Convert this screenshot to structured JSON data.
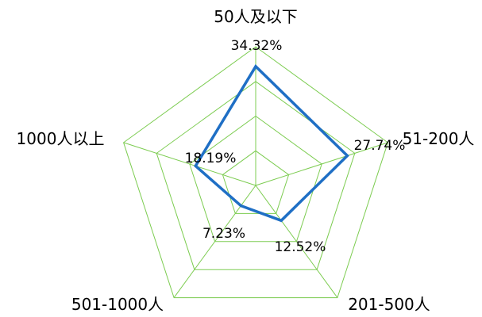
{
  "chart_data": {
    "type": "radar",
    "categories": [
      "50人及以下",
      "51-200人",
      "201-500人",
      "501-1000人",
      "1000人以上"
    ],
    "series": [
      {
        "values": [
          34.32,
          27.74,
          12.52,
          7.23,
          18.19
        ],
        "value_labels": [
          "34.32%",
          "27.74%",
          "12.52%",
          "7.23%",
          "18.19%"
        ],
        "color": "#1f6fc5"
      }
    ],
    "rlim": [
      0,
      40
    ],
    "grid_rings": 4,
    "grid": true,
    "grid_color": "#7ccc50",
    "legend": "none"
  }
}
